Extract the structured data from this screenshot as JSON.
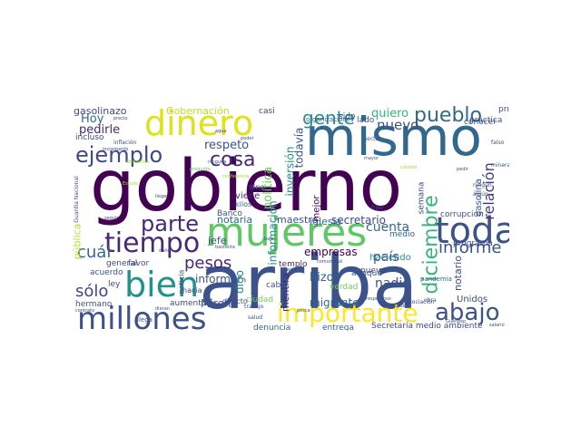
{
  "cloud": {
    "words": [
      {
        "text": "gobierno",
        "color": "#440154"
      },
      {
        "text": "arriba",
        "color": "#3b528b"
      },
      {
        "text": "mismo",
        "color": "#31688e"
      },
      {
        "text": "mujeres",
        "color": "#5ec962"
      },
      {
        "text": "millones",
        "color": "#3b528b"
      },
      {
        "text": "dinero",
        "color": "#dde318"
      },
      {
        "text": "bien",
        "color": "#21918c"
      },
      {
        "text": "toda",
        "color": "#3b528b"
      },
      {
        "text": "importante",
        "color": "#fde725"
      },
      {
        "text": "tiempo",
        "color": "#482878"
      },
      {
        "text": "ejemplo",
        "color": "#3e4989"
      },
      {
        "text": "abajo",
        "color": "#3b528b"
      },
      {
        "text": "parte",
        "color": "#482878"
      },
      {
        "text": "pueblo",
        "color": "#31688e"
      },
      {
        "text": "gente",
        "color": "#21918c"
      },
      {
        "text": "diciembre",
        "color": "#35b779"
      },
      {
        "text": "cosa",
        "color": "#482878"
      },
      {
        "text": "informe",
        "color": "#3b528b"
      },
      {
        "text": "relación",
        "color": "#443a83"
      },
      {
        "text": "cuál",
        "color": "#31688e"
      },
      {
        "text": "sólo",
        "color": "#3e4989"
      },
      {
        "text": "pesos",
        "color": "#482878"
      },
      {
        "text": "nuevo",
        "color": "#3b528b"
      },
      {
        "text": "Gobernación",
        "color": "#bddf26"
      },
      {
        "text": "respeto",
        "color": "#3b528b"
      },
      {
        "text": "pedirle",
        "color": "#482878"
      },
      {
        "text": "Hoy",
        "color": "#31688e"
      },
      {
        "text": "quiero",
        "color": "#35b779"
      },
      {
        "text": "empresas",
        "color": "#440154"
      },
      {
        "text": "secretario",
        "color": "#3e4989"
      },
      {
        "text": "maestro",
        "color": "#3b528b"
      },
      {
        "text": "notaria",
        "color": "#31688e"
      },
      {
        "text": "Miren",
        "color": "#3b528b"
      },
      {
        "text": "informar",
        "color": "#3b528b"
      },
      {
        "text": "nadie",
        "color": "#3b528b"
      },
      {
        "text": "hizo",
        "color": "#31688e"
      },
      {
        "text": "cuenta",
        "color": "#31688e"
      },
      {
        "text": "país",
        "color": "#3e4989"
      },
      {
        "text": "política",
        "color": "#6ece58"
      },
      {
        "text": "información",
        "color": "#21918c"
      },
      {
        "text": "inversión",
        "color": "#21918c"
      },
      {
        "text": "todavía",
        "color": "#3b528b"
      },
      {
        "text": "mentira",
        "color": "#482878"
      },
      {
        "text": "migrante",
        "color": "#31688e"
      },
      {
        "text": "pública",
        "color": "#b5de2b"
      },
      {
        "text": "gasolinazo",
        "color": "#3e4989"
      },
      {
        "text": "haciendo",
        "color": "#21918c"
      },
      {
        "text": "notario",
        "color": "#3e4989"
      },
      {
        "text": "Unidos",
        "color": "#3e4989"
      },
      {
        "text": "iglesia",
        "color": "#31688e"
      },
      {
        "text": "jefe",
        "color": "#3b528b"
      },
      {
        "text": "viene",
        "color": "#482878"
      },
      {
        "text": "digo",
        "color": "#26828e"
      },
      {
        "text": "incluso",
        "color": "#3e4989"
      },
      {
        "text": "primero",
        "color": "#3e4989"
      },
      {
        "text": "práctica",
        "color": "#3b528b"
      },
      {
        "text": "conocer",
        "color": "#3b528b"
      },
      {
        "text": "Banco",
        "color": "#3b528b"
      },
      {
        "text": "general",
        "color": "#3e4989"
      },
      {
        "text": "acuerdo",
        "color": "#3b528b"
      },
      {
        "text": "favor",
        "color": "#3e4989"
      },
      {
        "text": "hermano",
        "color": "#3b528b"
      },
      {
        "text": "aumento",
        "color": "#3e4989"
      },
      {
        "text": "denuncia",
        "color": "#31688e"
      },
      {
        "text": "entrega",
        "color": "#31688e"
      },
      {
        "text": "aunque",
        "color": "#3b528b"
      },
      {
        "text": "Secretaría medio ambiente",
        "color": "#3e4989"
      },
      {
        "text": "cabo",
        "color": "#3b528b"
      },
      {
        "text": "templo",
        "color": "#482878"
      },
      {
        "text": "corrupción",
        "color": "#3b528b"
      },
      {
        "text": "programa",
        "color": "#3e4989"
      },
      {
        "text": "gasolina",
        "color": "#3b528b"
      },
      {
        "text": "semana",
        "color": "#3e4989"
      },
      {
        "text": "mejor",
        "color": "#440154"
      },
      {
        "text": "casi",
        "color": "#3e4989"
      },
      {
        "text": "sido",
        "color": "#3b528b"
      },
      {
        "text": "lado",
        "color": "#3b528b"
      },
      {
        "text": "nueva",
        "color": "#3e4989"
      },
      {
        "text": "verdad",
        "color": "#6ece58"
      },
      {
        "text": "medio",
        "color": "#31688e"
      },
      {
        "text": "noticia",
        "color": "#3e4989"
      },
      {
        "text": "ciudad",
        "color": "#73d056"
      },
      {
        "text": "organizaciones",
        "color": "#3b528b"
      },
      {
        "text": "hacia",
        "color": "#3e4989"
      },
      {
        "text": "ley",
        "color": "#3e4989"
      },
      {
        "text": "llega",
        "color": "#3b528b"
      },
      {
        "text": "directo",
        "color": "#3e4989"
      },
      {
        "text": "trabajo",
        "color": "#3e4989"
      },
      {
        "text": "salud",
        "color": "#3b528b"
      },
      {
        "text": "kilos",
        "color": "#31688e"
      },
      {
        "text": "sino",
        "color": "#31688e"
      },
      {
        "text": "pandemia",
        "color": "#31688e"
      },
      {
        "text": "asociación",
        "color": "#3e4989"
      },
      {
        "text": "obra",
        "color": "#3b528b"
      },
      {
        "text": "derecho",
        "color": "#3e4989"
      },
      {
        "text": "Guardia Nacional",
        "color": "#3e4989"
      },
      {
        "text": "frijol",
        "color": "#3b528b"
      },
      {
        "text": "minera",
        "color": "#3b528b"
      },
      {
        "text": "inflación",
        "color": "#3e4989"
      },
      {
        "text": "incremento",
        "color": "#3e4989"
      },
      {
        "text": "sector",
        "color": "#3b528b"
      },
      {
        "text": "falso",
        "color": "#3b528b"
      },
      {
        "text": "ningún",
        "color": "#3e4989"
      },
      {
        "text": "algún",
        "color": "#3b528b"
      },
      {
        "text": "llegar",
        "color": "#3e4989"
      },
      {
        "text": "dieran",
        "color": "#3b528b"
      },
      {
        "text": "bastante",
        "color": "#3b528b"
      },
      {
        "text": "seguir",
        "color": "#3e4989"
      },
      {
        "text": "hecho",
        "color": "#3e4989"
      },
      {
        "text": "respetuoso",
        "color": "#3b528b"
      },
      {
        "text": "bajo",
        "color": "#3e4989"
      },
      {
        "text": "daño",
        "color": "#3e4989"
      },
      {
        "text": "mayor",
        "color": "#3b528b"
      },
      {
        "text": "salario",
        "color": "#3e4989"
      },
      {
        "text": "pedir",
        "color": "#3b528b"
      },
      {
        "text": "pregunta",
        "color": "#5ec962"
      },
      {
        "text": "conferencia",
        "color": "#a0da39"
      },
      {
        "text": "Estado",
        "color": "#b5de2b"
      },
      {
        "text": "calidad",
        "color": "#a0da39"
      },
      {
        "text": "precio",
        "color": "#3e4989"
      },
      {
        "text": "ninguna",
        "color": "#3b528b"
      },
      {
        "text": "poder",
        "color": "#3b528b"
      },
      {
        "text": "agua",
        "color": "#3e4989"
      },
      {
        "text": "contrato",
        "color": "#3e4989"
      },
      {
        "text": "pesca",
        "color": "#3b528b"
      },
      {
        "text": "comunidad",
        "color": "#3e4989"
      },
      {
        "text": "obligación",
        "color": "#a0da39"
      },
      {
        "text": "Guerrero",
        "color": "#3b528b"
      }
    ]
  }
}
